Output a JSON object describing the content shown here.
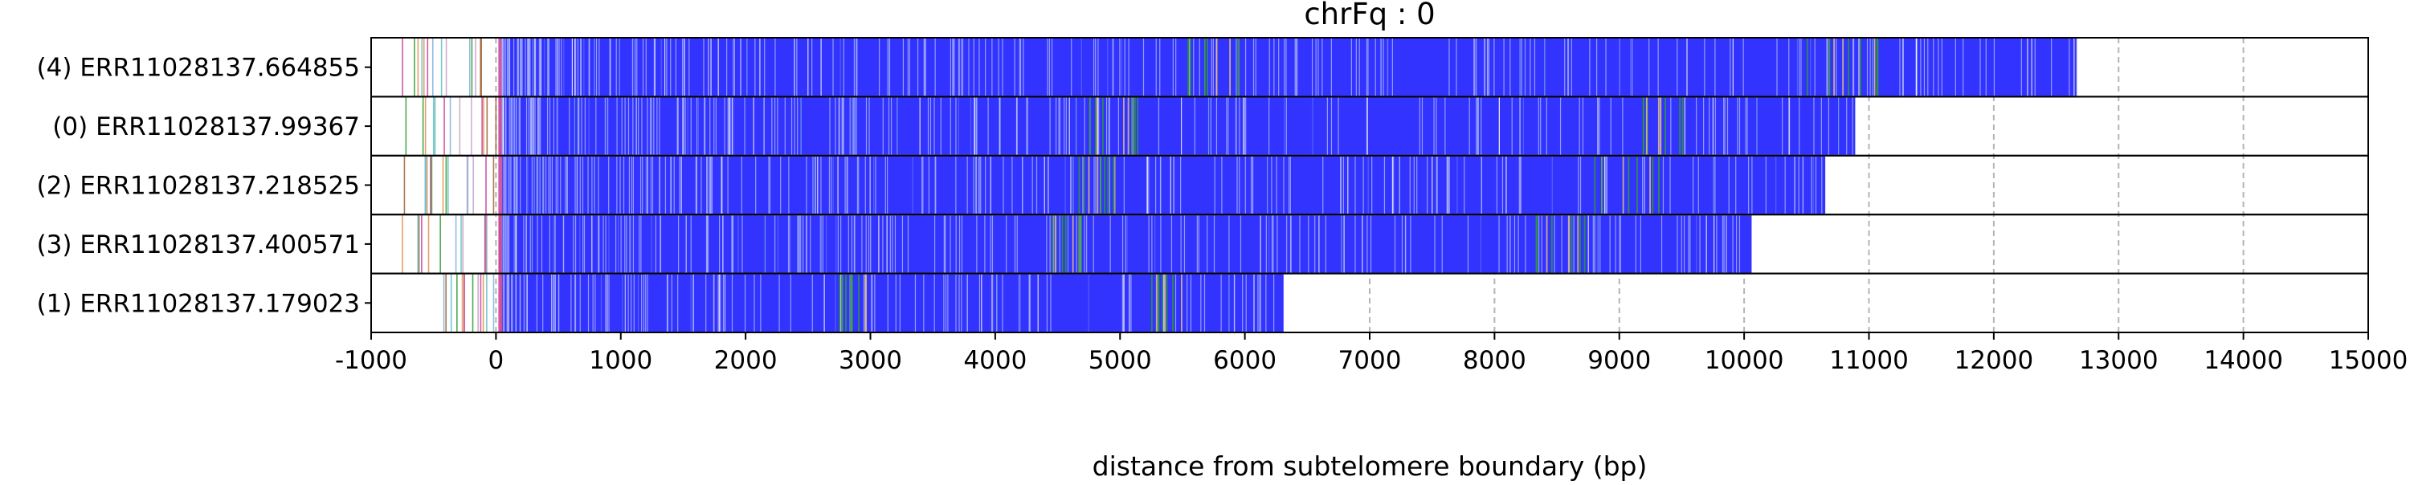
{
  "chart_data": {
    "type": "bar",
    "title": "chrFq : 0",
    "xlabel": "distance from subtelomere boundary (bp)",
    "ylabel": "",
    "xlim": [
      -1000,
      15000
    ],
    "x_ticks": [
      -1000,
      0,
      1000,
      2000,
      3000,
      4000,
      5000,
      6000,
      7000,
      8000,
      9000,
      10000,
      11000,
      12000,
      13000,
      14000,
      15000
    ],
    "x_tick_labels": [
      "-1000",
      "0",
      "1000",
      "2000",
      "3000",
      "4000",
      "5000",
      "6000",
      "7000",
      "8000",
      "9000",
      "10000",
      "11000",
      "12000",
      "13000",
      "14000",
      "15000"
    ],
    "grid": "vertical dashed at x ticks",
    "legend": "none",
    "colors": {
      "repeat": "#3333ff",
      "accent_green": "#2e9b2e",
      "accent_tan": "#e0c080",
      "boundary_magenta": "#c83c96",
      "grid": "#b4b4b4"
    },
    "reads": [
      {
        "label": "(4) ERR11028137.664855",
        "start": -800,
        "end": 12670
      },
      {
        "label": "(0) ERR11028137.99367",
        "start": -800,
        "end": 10890
      },
      {
        "label": "(2) ERR11028137.218525",
        "start": -800,
        "end": 10650
      },
      {
        "label": "(3) ERR11028137.400571",
        "start": -800,
        "end": 10060
      },
      {
        "label": "(1) ERR11028137.179023",
        "start": -420,
        "end": 6310
      }
    ]
  }
}
